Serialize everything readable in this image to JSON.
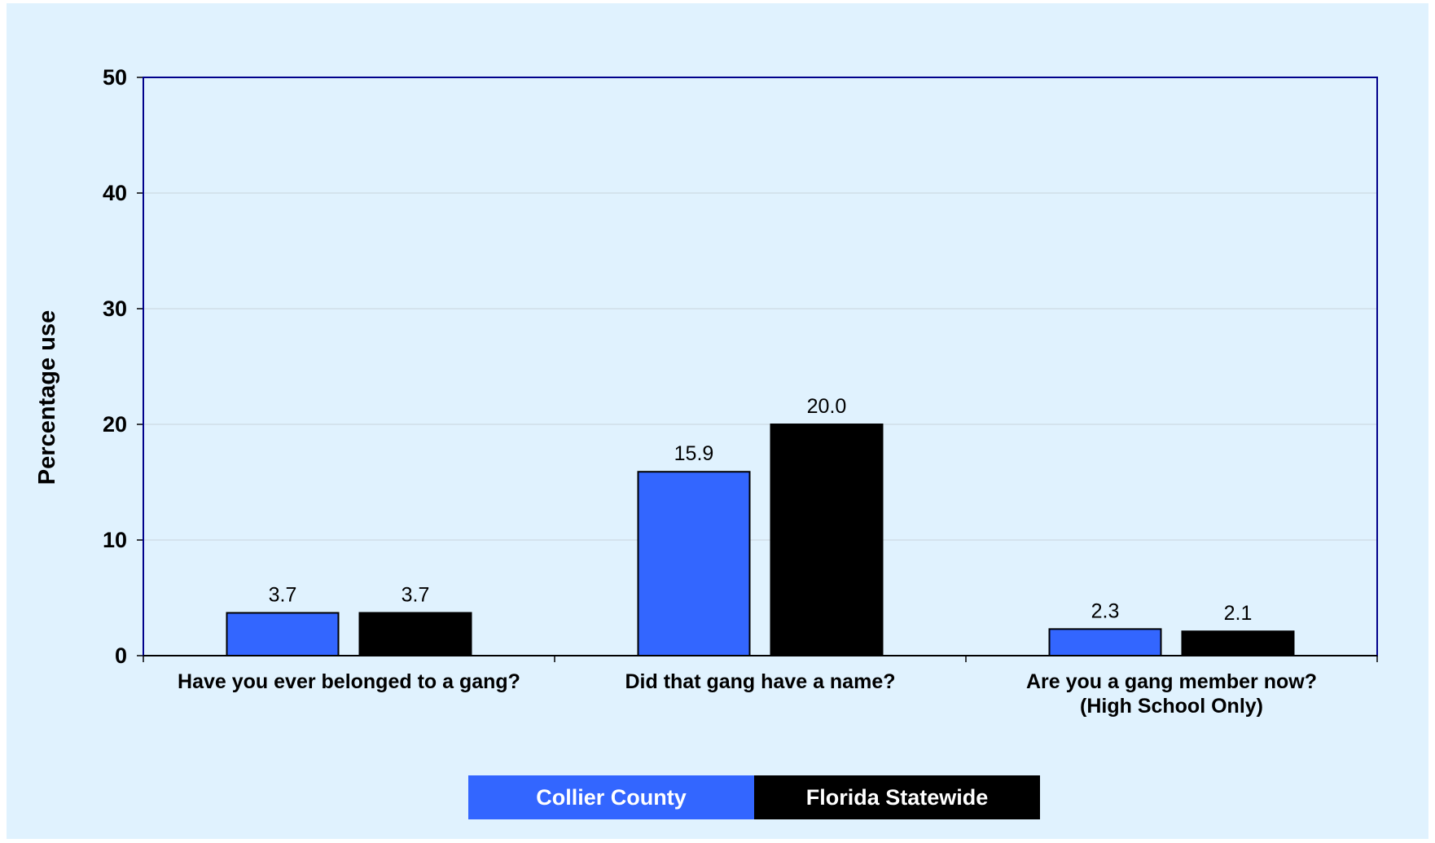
{
  "chart_data": {
    "type": "bar",
    "categories": [
      [
        "Have you ever belonged to a gang?"
      ],
      [
        "Did that gang have a name?"
      ],
      [
        "Are you a gang member now?",
        "(High School Only)"
      ]
    ],
    "series": [
      {
        "name": "Collier County",
        "values": [
          3.7,
          15.9,
          2.3
        ],
        "value_labels": [
          "3.7",
          "15.9",
          "2.3"
        ],
        "color": "#3366ff"
      },
      {
        "name": "Florida Statewide",
        "values": [
          3.7,
          20.0,
          2.1
        ],
        "value_labels": [
          "3.7",
          "20.0",
          "2.1"
        ],
        "color": "#000000"
      }
    ],
    "ylabel": "Percentage use",
    "xlabel": "",
    "ylim": [
      0,
      50
    ],
    "yticks": [
      "0",
      "10",
      "20",
      "30",
      "40",
      "50"
    ],
    "grid": true,
    "legend_position": "bottom"
  },
  "colors": {
    "background": "#e0f2fe",
    "plot_border": "#00008b",
    "gridline": "#c8d4dc"
  }
}
